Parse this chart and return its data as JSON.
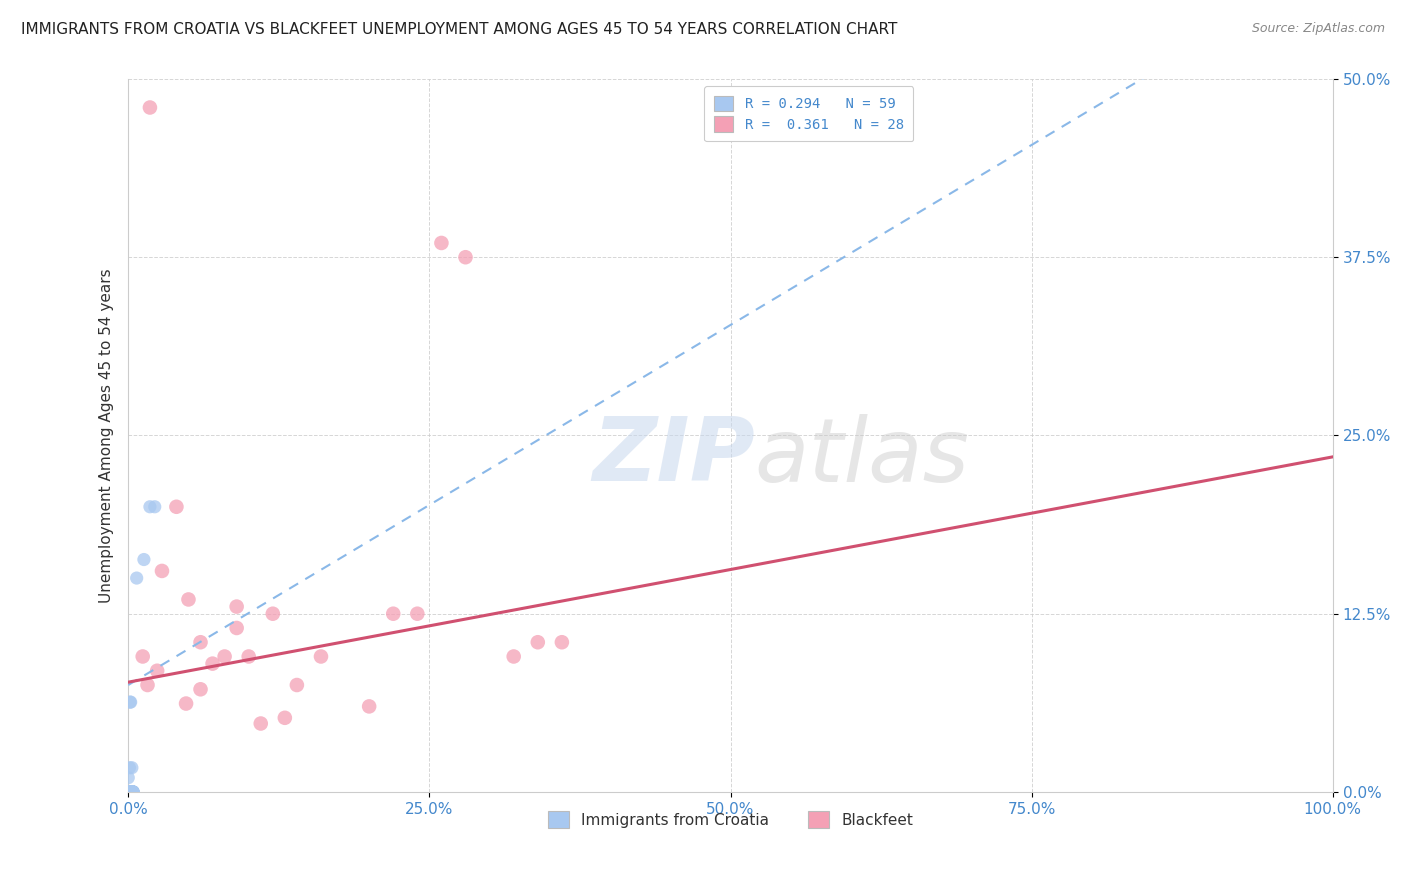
{
  "title": "IMMIGRANTS FROM CROATIA VS BLACKFEET UNEMPLOYMENT AMONG AGES 45 TO 54 YEARS CORRELATION CHART",
  "source": "Source: ZipAtlas.com",
  "ylabel": "Unemployment Among Ages 45 to 54 years",
  "legend1_label": "Immigrants from Croatia",
  "legend2_label": "Blackfeet",
  "r1": 0.294,
  "n1": 59,
  "r2": 0.361,
  "n2": 28,
  "xlim": [
    0.0,
    1.0
  ],
  "ylim": [
    0.0,
    0.5
  ],
  "xticks": [
    0.0,
    0.25,
    0.5,
    0.75,
    1.0
  ],
  "xtick_labels": [
    "0.0%",
    "25.0%",
    "50.0%",
    "75.0%",
    "100.0%"
  ],
  "yticks": [
    0.0,
    0.125,
    0.25,
    0.375,
    0.5
  ],
  "ytick_labels": [
    "0.0%",
    "12.5%",
    "25.0%",
    "37.5%",
    "50.0%"
  ],
  "color_croatia": "#a8c8f0",
  "color_blackfeet": "#f4a0b5",
  "trendline_color_croatia": "#8ab8e8",
  "trendline_color_blackfeet": "#d05070",
  "watermark_zip": "ZIP",
  "watermark_atlas": "atlas",
  "croatia_scatter": [
    [
      0.002,
      0.0
    ],
    [
      0.003,
      0.0
    ],
    [
      0.001,
      0.0
    ],
    [
      0.004,
      0.0
    ],
    [
      0.002,
      0.0
    ],
    [
      0.003,
      0.0
    ],
    [
      0.001,
      0.0
    ],
    [
      0.0,
      0.0
    ],
    [
      0.004,
      0.0
    ],
    [
      0.002,
      0.0
    ],
    [
      0.003,
      0.0
    ],
    [
      0.001,
      0.0
    ],
    [
      0.002,
      0.0
    ],
    [
      0.003,
      0.0
    ],
    [
      0.001,
      0.0
    ],
    [
      0.004,
      0.0
    ],
    [
      0.002,
      0.0
    ],
    [
      0.003,
      0.0
    ],
    [
      0.001,
      0.0
    ],
    [
      0.002,
      0.0
    ],
    [
      0.003,
      0.0
    ],
    [
      0.001,
      0.0
    ],
    [
      0.002,
      0.0
    ],
    [
      0.003,
      0.0
    ],
    [
      0.001,
      0.0
    ],
    [
      0.004,
      0.0
    ],
    [
      0.002,
      0.0
    ],
    [
      0.003,
      0.0
    ],
    [
      0.001,
      0.0
    ],
    [
      0.002,
      0.0
    ],
    [
      0.003,
      0.0
    ],
    [
      0.001,
      0.0
    ],
    [
      0.004,
      0.0
    ],
    [
      0.002,
      0.0
    ],
    [
      0.003,
      0.0
    ],
    [
      0.001,
      0.0
    ],
    [
      0.002,
      0.0
    ],
    [
      0.003,
      0.0
    ],
    [
      0.001,
      0.0
    ],
    [
      0.002,
      0.0
    ],
    [
      0.003,
      0.0
    ],
    [
      0.001,
      0.0
    ],
    [
      0.002,
      0.0
    ],
    [
      0.003,
      0.0
    ],
    [
      0.001,
      0.0
    ],
    [
      0.004,
      0.0
    ],
    [
      0.002,
      0.0
    ],
    [
      0.001,
      0.0
    ],
    [
      0.003,
      0.0
    ],
    [
      0.002,
      0.0
    ],
    [
      0.003,
      0.017
    ],
    [
      0.001,
      0.017
    ],
    [
      0.0,
      0.01
    ],
    [
      0.018,
      0.2
    ],
    [
      0.022,
      0.2
    ],
    [
      0.013,
      0.163
    ],
    [
      0.002,
      0.063
    ],
    [
      0.0015,
      0.063
    ],
    [
      0.007,
      0.15
    ]
  ],
  "blackfeet_scatter": [
    [
      0.018,
      0.48
    ],
    [
      0.04,
      0.2
    ],
    [
      0.05,
      0.135
    ],
    [
      0.028,
      0.155
    ],
    [
      0.06,
      0.105
    ],
    [
      0.08,
      0.095
    ],
    [
      0.07,
      0.09
    ],
    [
      0.09,
      0.115
    ],
    [
      0.12,
      0.125
    ],
    [
      0.1,
      0.095
    ],
    [
      0.14,
      0.075
    ],
    [
      0.16,
      0.095
    ],
    [
      0.24,
      0.125
    ],
    [
      0.26,
      0.385
    ],
    [
      0.28,
      0.375
    ],
    [
      0.32,
      0.095
    ],
    [
      0.34,
      0.105
    ],
    [
      0.36,
      0.105
    ],
    [
      0.2,
      0.06
    ],
    [
      0.22,
      0.125
    ],
    [
      0.11,
      0.048
    ],
    [
      0.13,
      0.052
    ],
    [
      0.012,
      0.095
    ],
    [
      0.016,
      0.075
    ],
    [
      0.024,
      0.085
    ],
    [
      0.048,
      0.062
    ],
    [
      0.06,
      0.072
    ],
    [
      0.09,
      0.13
    ]
  ],
  "bg_color": "#ffffff",
  "grid_color": "#cccccc",
  "tick_color": "#4488cc"
}
